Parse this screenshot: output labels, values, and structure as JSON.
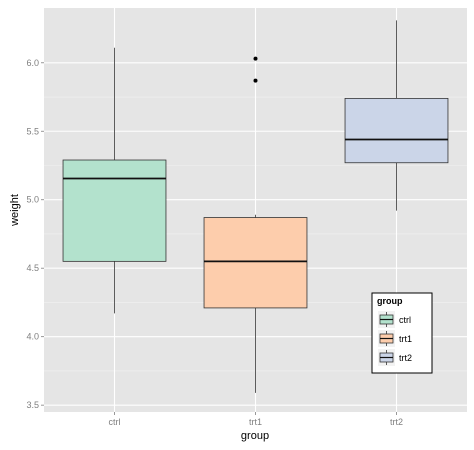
{
  "chart_data": {
    "type": "boxplot",
    "xlabel": "group",
    "ylabel": "weight",
    "categories": [
      "ctrl",
      "trt1",
      "trt2"
    ],
    "ylim": [
      3.45,
      6.4
    ],
    "yticks": [
      3.5,
      4.0,
      4.5,
      5.0,
      5.5,
      6.0
    ],
    "ytick_labels": [
      "3.5",
      "4.0",
      "4.5",
      "5.0",
      "5.5",
      "6.0"
    ],
    "grid": true,
    "legend": {
      "title": "group",
      "position": "bottom-right inside",
      "entries": [
        "ctrl",
        "trt1",
        "trt2"
      ]
    },
    "boxes": [
      {
        "category": "ctrl",
        "min": 4.17,
        "q1": 4.55,
        "median": 5.155,
        "q3": 5.29,
        "max": 6.11,
        "outliers": [],
        "color": "#b3e2cd"
      },
      {
        "category": "trt1",
        "min": 3.59,
        "q1": 4.21,
        "median": 4.55,
        "q3": 4.87,
        "max": 4.89,
        "outliers": [
          5.87,
          6.03
        ],
        "color": "#fdcdac"
      },
      {
        "category": "trt2",
        "min": 4.92,
        "q1": 5.27,
        "median": 5.44,
        "q3": 5.74,
        "max": 6.31,
        "outliers": [],
        "color": "#cbd5e8"
      }
    ]
  }
}
